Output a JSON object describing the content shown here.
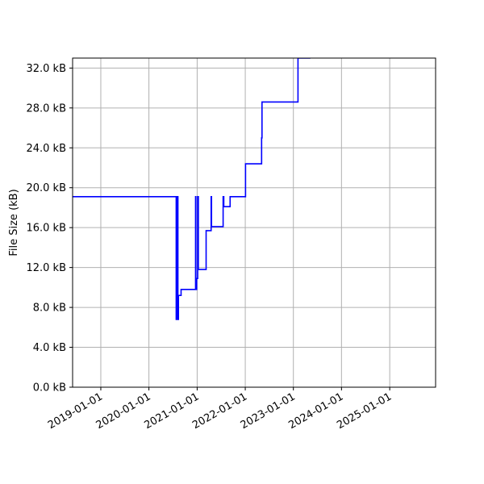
{
  "chart_data": {
    "type": "line",
    "title": "",
    "xlabel": "",
    "ylabel": "File Size (kB)",
    "grid": true,
    "x_is_date": true,
    "xlim": [
      "2018-06-01",
      "2025-12-15"
    ],
    "ylim": [
      0,
      33.0
    ],
    "y_ticks": [
      0,
      4,
      8,
      12,
      16,
      20,
      24,
      28,
      32
    ],
    "y_tick_labels": [
      "0.0 kB",
      "4.0 kB",
      "8.0 kB",
      "12.0 kB",
      "16.0 kB",
      "20.0 kB",
      "24.0 kB",
      "28.0 kB",
      "32.0 kB"
    ],
    "x_ticks": [
      "2019-01-01",
      "2020-01-01",
      "2021-01-01",
      "2022-01-01",
      "2023-01-01",
      "2024-01-01",
      "2025-01-01"
    ],
    "x_tick_labels": [
      "2019-01-01",
      "2020-01-01",
      "2021-01-01",
      "2022-01-01",
      "2023-01-01",
      "2024-01-01",
      "2025-01-01"
    ],
    "series": [
      {
        "color": "#0000ff",
        "x": [
          "2018-06-01",
          "2020-07-20",
          "2020-07-26",
          "2020-08-03",
          "2020-08-08",
          "2020-08-12",
          "2020-08-18",
          "2020-09-01",
          "2020-10-15",
          "2020-12-20",
          "2020-12-22",
          "2020-12-28",
          "2021-01-05",
          "2021-01-10",
          "2021-01-14",
          "2021-01-20",
          "2021-03-10",
          "2021-04-15",
          "2021-04-17",
          "2021-04-20",
          "2021-07-15",
          "2021-07-17",
          "2021-07-22",
          "2021-09-05",
          "2021-09-08",
          "2022-01-03",
          "2022-05-01",
          "2022-05-05",
          "2022-05-08",
          "2023-02-01",
          "2023-02-05",
          "2023-05-10"
        ],
        "y": [
          19.1,
          19.1,
          6.8,
          19.1,
          6.8,
          9.2,
          9.2,
          9.8,
          9.8,
          19.1,
          9.8,
          10.9,
          19.1,
          11.8,
          11.8,
          11.8,
          15.7,
          15.7,
          19.1,
          16.1,
          16.1,
          19.1,
          18.1,
          18.1,
          19.1,
          22.4,
          22.4,
          25.0,
          28.6,
          28.6,
          33.0,
          33.0
        ]
      }
    ]
  }
}
